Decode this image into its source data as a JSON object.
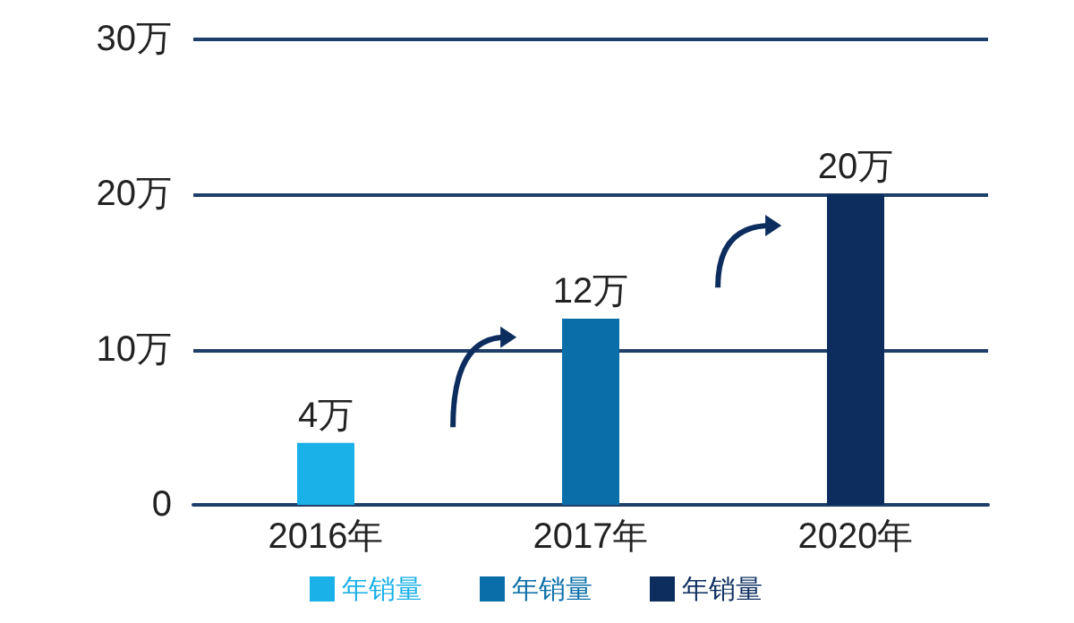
{
  "chart_data": {
    "type": "bar",
    "categories": [
      "2016年",
      "2017年",
      "2020年"
    ],
    "series": [
      {
        "name": "年销量",
        "color": "#1ab0e8",
        "values": [
          4,
          null,
          null
        ],
        "value_labels": [
          "4万",
          null,
          null
        ]
      },
      {
        "name": "年销量",
        "color": "#0a6fa8",
        "values": [
          null,
          12,
          null
        ],
        "value_labels": [
          null,
          "12万",
          null
        ]
      },
      {
        "name": "年销量",
        "color": "#0c2d5e",
        "values": [
          null,
          null,
          20
        ],
        "value_labels": [
          null,
          null,
          "20万"
        ]
      }
    ],
    "stacked": true,
    "ylim": [
      0,
      30
    ],
    "yticks": [
      0,
      {
        "value": 10,
        "label": "10万"
      },
      {
        "value": 20,
        "label": "20万"
      },
      {
        "value": 30,
        "label": "30万"
      }
    ],
    "grid": "y",
    "legend": "bottom"
  }
}
